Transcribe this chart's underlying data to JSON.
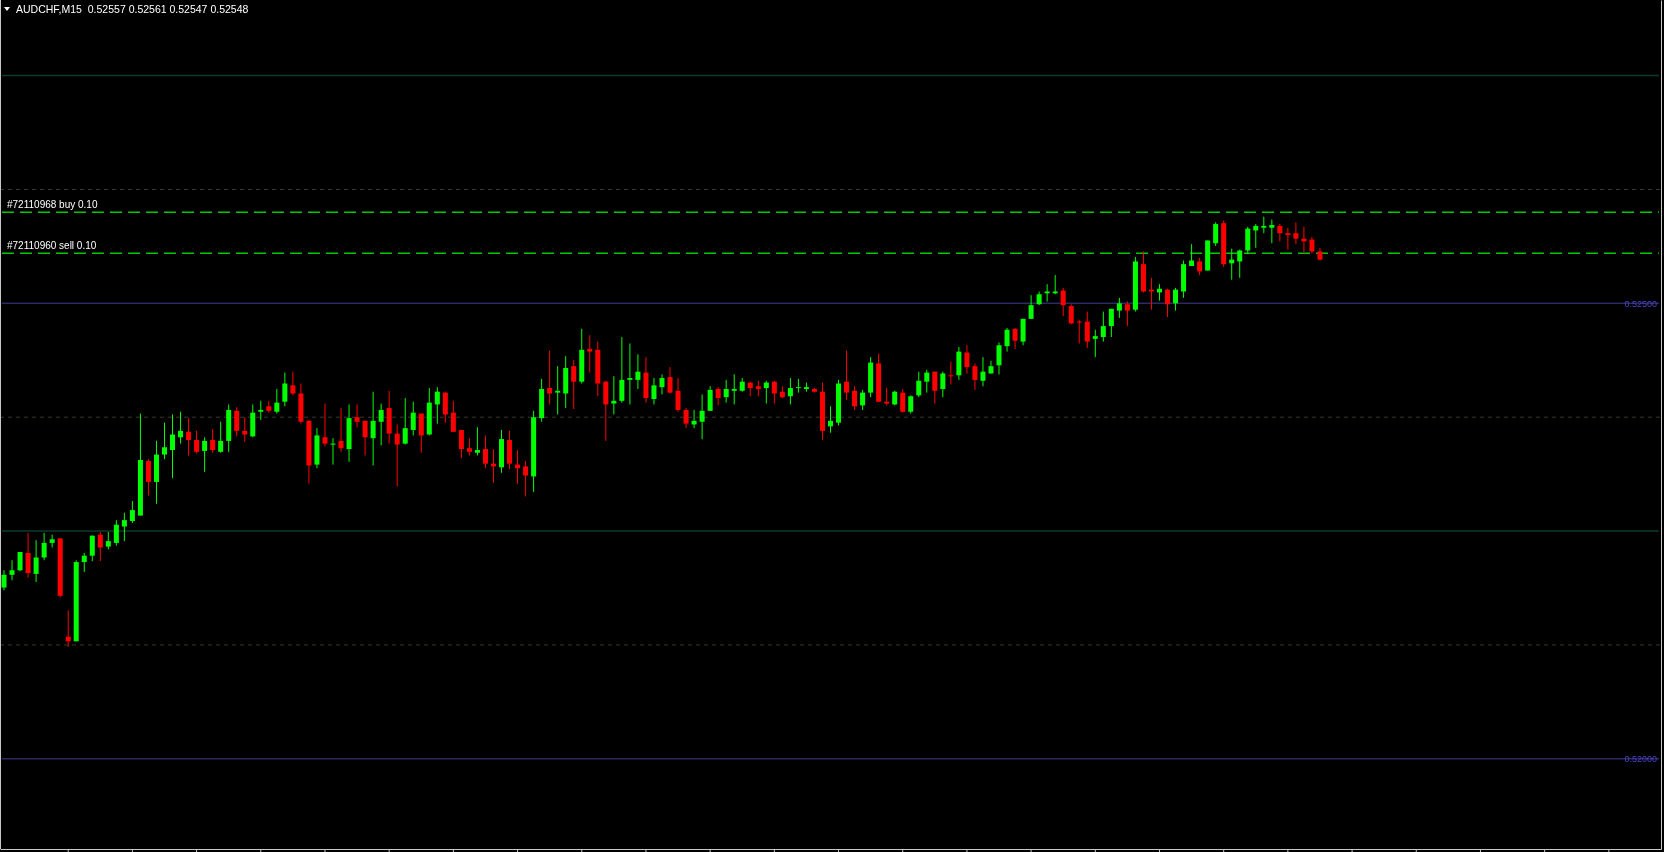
{
  "chart_data": {
    "type": "candlestick",
    "title": "AUDCHF,M15  0.52557 0.52561 0.52547 0.52548",
    "categories": [
      null,
      null,
      null,
      null,
      null,
      null,
      null,
      null,
      null,
      null,
      null,
      null,
      null,
      null,
      null,
      null,
      null,
      null,
      null,
      null,
      null,
      null,
      null,
      null,
      null,
      null,
      null,
      null,
      null,
      null,
      null,
      null,
      null,
      null,
      null,
      null,
      null,
      null,
      null,
      null,
      null,
      null,
      null,
      null,
      null,
      null,
      null,
      null,
      null,
      null,
      null,
      null,
      null,
      null,
      null,
      null,
      null,
      null,
      null,
      null,
      null,
      null,
      null,
      null,
      null,
      null,
      null,
      null,
      null,
      null,
      null,
      null,
      null,
      null,
      null,
      null,
      null,
      null,
      null,
      null,
      null,
      null,
      null,
      null,
      null,
      null,
      null,
      null,
      null,
      null,
      null,
      null,
      null,
      null,
      null,
      null,
      null,
      null,
      null,
      null,
      null,
      null,
      null,
      null,
      null,
      null,
      null,
      null,
      null,
      null,
      null,
      null,
      null,
      null,
      null,
      null,
      null,
      null,
      null,
      null,
      null,
      null,
      null,
      null,
      null,
      null,
      null,
      null,
      null,
      null,
      null,
      null,
      null,
      null,
      null,
      null,
      null,
      null,
      null,
      null,
      null,
      null,
      null,
      null,
      null,
      null,
      null,
      null,
      null,
      null,
      null,
      null,
      null,
      null,
      null,
      null,
      null,
      null,
      null,
      null,
      null,
      null,
      null,
      null,
      null,
      null,
      null,
      null,
      null,
      null,
      null,
      null,
      null,
      null,
      null,
      null,
      null,
      null,
      null,
      null,
      null,
      null,
      null,
      null,
      null,
      null,
      null,
      null,
      null,
      null,
      null,
      null,
      null,
      null,
      null,
      null,
      null,
      null,
      null,
      null,
      null,
      null,
      null,
      null,
      null,
      null,
      null
    ],
    "ohlc": [
      [
        0.52188,
        0.52207,
        0.52185,
        0.52202
      ],
      [
        0.52202,
        0.52218,
        0.52196,
        0.52207
      ],
      [
        0.52207,
        0.52227,
        0.52206,
        0.52227
      ],
      [
        0.52226,
        0.52248,
        0.52199,
        0.52204
      ],
      [
        0.52203,
        0.5224,
        0.52194,
        0.52221
      ],
      [
        0.52221,
        0.52248,
        0.52218,
        0.52237
      ],
      [
        0.52237,
        0.52246,
        0.52232,
        0.52241
      ],
      [
        0.52242,
        0.52242,
        0.52177,
        0.52179
      ],
      [
        0.52134,
        0.52163,
        0.52123,
        0.52129
      ],
      [
        0.52129,
        0.52218,
        0.52129,
        0.52216
      ],
      [
        0.52216,
        0.52226,
        0.52205,
        0.52223
      ],
      [
        0.52223,
        0.52245,
        0.52217,
        0.52245
      ],
      [
        0.52246,
        0.52249,
        0.52217,
        0.52232
      ],
      [
        0.52233,
        0.52249,
        0.5223,
        0.52239
      ],
      [
        0.52237,
        0.52262,
        0.52234,
        0.52257
      ],
      [
        0.52255,
        0.5227,
        0.52239,
        0.52262
      ],
      [
        0.52261,
        0.52283,
        0.52259,
        0.52273
      ],
      [
        0.52267,
        0.52379,
        0.52267,
        0.52328
      ],
      [
        0.52327,
        0.52329,
        0.52289,
        0.52304
      ],
      [
        0.52304,
        0.52349,
        0.5228,
        0.52334
      ],
      [
        0.52334,
        0.52369,
        0.52329,
        0.52342
      ],
      [
        0.52339,
        0.52378,
        0.52308,
        0.52356
      ],
      [
        0.52353,
        0.52381,
        0.52346,
        0.5236
      ],
      [
        0.52359,
        0.52374,
        0.52333,
        0.5235
      ],
      [
        0.5235,
        0.5236,
        0.52335,
        0.52337
      ],
      [
        0.52338,
        0.52353,
        0.52315,
        0.52349
      ],
      [
        0.5235,
        0.52362,
        0.52336,
        0.52339
      ],
      [
        0.52337,
        0.5237,
        0.52336,
        0.52349
      ],
      [
        0.52349,
        0.52389,
        0.52337,
        0.52383
      ],
      [
        0.52382,
        0.52386,
        0.52354,
        0.5236
      ],
      [
        0.5236,
        0.52375,
        0.52348,
        0.52356
      ],
      [
        0.52354,
        0.52389,
        0.52353,
        0.5238
      ],
      [
        0.52381,
        0.52393,
        0.52372,
        0.52383
      ],
      [
        0.52387,
        0.52393,
        0.5238,
        0.52382
      ],
      [
        0.52381,
        0.52406,
        0.52379,
        0.52391
      ],
      [
        0.52392,
        0.52424,
        0.52387,
        0.52412
      ],
      [
        0.5241,
        0.52425,
        0.52399,
        0.52401
      ],
      [
        0.52401,
        0.52412,
        0.52368,
        0.5237
      ],
      [
        0.52371,
        0.52372,
        0.52302,
        0.52322
      ],
      [
        0.52323,
        0.52363,
        0.52319,
        0.52355
      ],
      [
        0.52353,
        0.5239,
        0.52343,
        0.52346
      ],
      [
        0.52345,
        0.52352,
        0.52323,
        0.52346
      ],
      [
        0.52349,
        0.52385,
        0.52337,
        0.52341
      ],
      [
        0.5234,
        0.52389,
        0.52326,
        0.52374
      ],
      [
        0.52375,
        0.52389,
        0.52364,
        0.5237
      ],
      [
        0.52371,
        0.52371,
        0.52333,
        0.52353
      ],
      [
        0.52352,
        0.52403,
        0.52322,
        0.52371
      ],
      [
        0.5237,
        0.5239,
        0.52344,
        0.52383
      ],
      [
        0.52385,
        0.52404,
        0.52346,
        0.52357
      ],
      [
        0.52357,
        0.52367,
        0.52299,
        0.52345
      ],
      [
        0.52346,
        0.52396,
        0.52345,
        0.52363
      ],
      [
        0.52361,
        0.52392,
        0.52355,
        0.5238
      ],
      [
        0.52379,
        0.52379,
        0.52336,
        0.52355
      ],
      [
        0.52356,
        0.52407,
        0.52355,
        0.52391
      ],
      [
        0.52389,
        0.52408,
        0.52368,
        0.52403
      ],
      [
        0.52402,
        0.52403,
        0.52369,
        0.52378
      ],
      [
        0.5238,
        0.52393,
        0.52359,
        0.52359
      ],
      [
        0.52361,
        0.52361,
        0.5233,
        0.5234
      ],
      [
        0.52341,
        0.52352,
        0.52333,
        0.52337
      ],
      [
        0.52336,
        0.52364,
        0.52333,
        0.52339
      ],
      [
        0.5234,
        0.52355,
        0.52319,
        0.52324
      ],
      [
        0.52324,
        0.5234,
        0.52303,
        0.52321
      ],
      [
        0.5232,
        0.52361,
        0.52314,
        0.52351
      ],
      [
        0.5235,
        0.5236,
        0.52318,
        0.52324
      ],
      [
        0.52323,
        0.52339,
        0.52302,
        0.52319
      ],
      [
        0.52321,
        0.52327,
        0.52288,
        0.52311
      ],
      [
        0.5231,
        0.52382,
        0.52293,
        0.52375
      ],
      [
        0.52374,
        0.52417,
        0.5237,
        0.52406
      ],
      [
        0.52407,
        0.52448,
        0.52389,
        0.52401
      ],
      [
        0.52402,
        0.52431,
        0.52378,
        0.52404
      ],
      [
        0.52401,
        0.52442,
        0.52385,
        0.52429
      ],
      [
        0.52431,
        0.52438,
        0.52384,
        0.52414
      ],
      [
        0.52414,
        0.52472,
        0.52412,
        0.52449
      ],
      [
        0.5245,
        0.52465,
        0.52424,
        0.52447
      ],
      [
        0.52449,
        0.52458,
        0.52398,
        0.52412
      ],
      [
        0.52414,
        0.52415,
        0.52349,
        0.52389
      ],
      [
        0.5239,
        0.5242,
        0.52378,
        0.52393
      ],
      [
        0.52393,
        0.52463,
        0.52391,
        0.52416
      ],
      [
        0.52416,
        0.52456,
        0.52389,
        0.52418
      ],
      [
        0.52416,
        0.52444,
        0.52406,
        0.52425
      ],
      [
        0.52424,
        0.52441,
        0.52391,
        0.52396
      ],
      [
        0.52395,
        0.52418,
        0.52389,
        0.5241
      ],
      [
        0.52408,
        0.52422,
        0.524,
        0.52418
      ],
      [
        0.52419,
        0.5243,
        0.52401,
        0.52402
      ],
      [
        0.52404,
        0.52418,
        0.52381,
        0.52383
      ],
      [
        0.52383,
        0.52385,
        0.52363,
        0.52368
      ],
      [
        0.52367,
        0.52383,
        0.52363,
        0.52371
      ],
      [
        0.5237,
        0.524,
        0.52351,
        0.52382
      ],
      [
        0.52382,
        0.52409,
        0.52382,
        0.52405
      ],
      [
        0.52406,
        0.52408,
        0.52388,
        0.52396
      ],
      [
        0.52397,
        0.52416,
        0.52391,
        0.52406
      ],
      [
        0.52404,
        0.52422,
        0.52389,
        0.52406
      ],
      [
        0.52404,
        0.52418,
        0.52403,
        0.52414
      ],
      [
        0.52413,
        0.52414,
        0.52398,
        0.52407
      ],
      [
        0.52409,
        0.52415,
        0.52398,
        0.52406
      ],
      [
        0.52407,
        0.52415,
        0.5239,
        0.52413
      ],
      [
        0.52414,
        0.52415,
        0.5239,
        0.52401
      ],
      [
        0.52403,
        0.52409,
        0.52396,
        0.52397
      ],
      [
        0.52398,
        0.52418,
        0.52389,
        0.52407
      ],
      [
        0.52407,
        0.52417,
        0.52402,
        0.52408
      ],
      [
        0.52406,
        0.52413,
        0.52403,
        0.52408
      ],
      [
        0.52406,
        0.52407,
        0.52402,
        0.52403
      ],
      [
        0.52403,
        0.52413,
        0.5235,
        0.5236
      ],
      [
        0.52365,
        0.52387,
        0.52358,
        0.52371
      ],
      [
        0.52369,
        0.52416,
        0.52366,
        0.52412
      ],
      [
        0.52414,
        0.52448,
        0.52394,
        0.52402
      ],
      [
        0.52404,
        0.52409,
        0.52383,
        0.52387
      ],
      [
        0.52388,
        0.52405,
        0.52383,
        0.52402
      ],
      [
        0.52402,
        0.52441,
        0.52397,
        0.52435
      ],
      [
        0.52434,
        0.52445,
        0.52392,
        0.52392
      ],
      [
        0.52392,
        0.52407,
        0.52388,
        0.5239
      ],
      [
        0.52389,
        0.52404,
        0.52388,
        0.52403
      ],
      [
        0.52402,
        0.52406,
        0.5238,
        0.52381
      ],
      [
        0.52381,
        0.52399,
        0.52379,
        0.52398
      ],
      [
        0.52399,
        0.52425,
        0.52397,
        0.52415
      ],
      [
        0.52414,
        0.52427,
        0.52402,
        0.52424
      ],
      [
        0.52425,
        0.52425,
        0.5239,
        0.52404
      ],
      [
        0.52406,
        0.52425,
        0.52397,
        0.52423
      ],
      [
        0.52421,
        0.52436,
        0.52411,
        0.5242
      ],
      [
        0.52421,
        0.52452,
        0.52416,
        0.52447
      ],
      [
        0.52446,
        0.52454,
        0.52423,
        0.5243
      ],
      [
        0.52431,
        0.52434,
        0.52405,
        0.52416
      ],
      [
        0.52415,
        0.52441,
        0.52409,
        0.52425
      ],
      [
        0.52423,
        0.52437,
        0.52423,
        0.52431
      ],
      [
        0.52432,
        0.52457,
        0.52422,
        0.52454
      ],
      [
        0.52453,
        0.52473,
        0.52447,
        0.52471
      ],
      [
        0.52472,
        0.52473,
        0.5245,
        0.52459
      ],
      [
        0.52458,
        0.52483,
        0.52454,
        0.52483
      ],
      [
        0.52483,
        0.52509,
        0.52483,
        0.52498
      ],
      [
        0.52499,
        0.52513,
        0.52498,
        0.5251
      ],
      [
        0.52511,
        0.52521,
        0.52502,
        0.52513
      ],
      [
        0.52511,
        0.52531,
        0.5251,
        0.52513
      ],
      [
        0.52514,
        0.52517,
        0.52486,
        0.52498
      ],
      [
        0.52497,
        0.52499,
        0.52477,
        0.52478
      ],
      [
        0.5248,
        0.52482,
        0.52456,
        0.52479
      ],
      [
        0.5248,
        0.52491,
        0.52451,
        0.52458
      ],
      [
        0.52461,
        0.52471,
        0.52441,
        0.52464
      ],
      [
        0.52463,
        0.52491,
        0.52458,
        0.52475
      ],
      [
        0.52475,
        0.52494,
        0.52463,
        0.52494
      ],
      [
        0.52492,
        0.52506,
        0.52484,
        0.525
      ],
      [
        0.52499,
        0.52502,
        0.52475,
        0.52492
      ],
      [
        0.52493,
        0.52551,
        0.52491,
        0.52546
      ],
      [
        0.52543,
        0.52557,
        0.52512,
        0.52513
      ],
      [
        0.52515,
        0.52528,
        0.52493,
        0.52513
      ],
      [
        0.52512,
        0.52521,
        0.52503,
        0.52516
      ],
      [
        0.52515,
        0.52516,
        0.52485,
        0.52499
      ],
      [
        0.525,
        0.52517,
        0.52492,
        0.52515
      ],
      [
        0.52513,
        0.52547,
        0.52506,
        0.52543
      ],
      [
        0.52541,
        0.52565,
        0.52541,
        0.52547
      ],
      [
        0.52546,
        0.5255,
        0.52531,
        0.52535
      ],
      [
        0.52536,
        0.52569,
        0.52536,
        0.52569
      ],
      [
        0.52566,
        0.52589,
        0.52563,
        0.52587
      ],
      [
        0.52588,
        0.52591,
        0.5254,
        0.52543
      ],
      [
        0.52544,
        0.5256,
        0.52526,
        0.52548
      ],
      [
        0.52546,
        0.52559,
        0.52528,
        0.52558
      ],
      [
        0.52558,
        0.52584,
        0.52554,
        0.52582
      ],
      [
        0.5258,
        0.52587,
        0.52561,
        0.52585
      ],
      [
        0.52583,
        0.52595,
        0.52577,
        0.52585
      ],
      [
        0.52583,
        0.52592,
        0.52566,
        0.52586
      ],
      [
        0.52585,
        0.52587,
        0.52568,
        0.52577
      ],
      [
        0.52577,
        0.52583,
        0.52559,
        0.52575
      ],
      [
        0.52577,
        0.52589,
        0.52565,
        0.52571
      ],
      [
        0.52571,
        0.52584,
        0.52555,
        0.52568
      ],
      [
        0.5257,
        0.52573,
        0.52555,
        0.52557
      ],
      [
        0.52557,
        0.52561,
        0.52547,
        0.52548
      ],
      null,
      null,
      null,
      null,
      null,
      null,
      null,
      null,
      null,
      null,
      null,
      null,
      null,
      null,
      null,
      null,
      null,
      null,
      null,
      null,
      null,
      null,
      null,
      null,
      null,
      null,
      null,
      null,
      null,
      null,
      null,
      null,
      null,
      null,
      null,
      null,
      null,
      null,
      null,
      null,
      null,
      null
    ],
    "colors": [
      "#00ff00",
      "#00ff00",
      "#00ff00",
      "#ff0000",
      "#00ff00",
      "#00ff00",
      "#00ff00",
      "#ff0000",
      "#ff0000",
      "#00ff00",
      "#00ff00",
      "#00ff00",
      "#ff0000",
      "#00ff00",
      "#00ff00",
      "#00ff00",
      "#00ff00",
      "#00ff00",
      "#ff0000",
      "#00ff00",
      "#00ff00",
      "#00ff00",
      "#00ff00",
      "#ff0000",
      "#ff0000",
      "#00ff00",
      "#ff0000",
      "#00ff00",
      "#00ff00",
      "#ff0000",
      "#ff0000",
      "#00ff00",
      "#00ff00",
      "#ff0000",
      "#00ff00",
      "#00ff00",
      "#ff0000",
      "#ff0000",
      "#ff0000",
      "#00ff00",
      "#ff0000",
      "#00ff00",
      "#ff0000",
      "#00ff00",
      "#ff0000",
      "#ff0000",
      "#00ff00",
      "#00ff00",
      "#ff0000",
      "#ff0000",
      "#00ff00",
      "#00ff00",
      "#ff0000",
      "#00ff00",
      "#00ff00",
      "#ff0000",
      "#ff0000",
      "#ff0000",
      "#ff0000",
      "#00ff00",
      "#ff0000",
      "#ff0000",
      "#00ff00",
      "#ff0000",
      "#ff0000",
      "#ff0000",
      "#00ff00",
      "#00ff00",
      "#ff0000",
      "#00ff00",
      "#00ff00",
      "#ff0000",
      "#00ff00",
      "#ff0000",
      "#ff0000",
      "#ff0000",
      "#00ff00",
      "#00ff00",
      "#00ff00",
      "#00ff00",
      "#ff0000",
      "#00ff00",
      "#00ff00",
      "#ff0000",
      "#ff0000",
      "#ff0000",
      "#00ff00",
      "#00ff00",
      "#00ff00",
      "#ff0000",
      "#00ff00",
      "#00ff00",
      "#00ff00",
      "#ff0000",
      "#ff0000",
      "#00ff00",
      "#ff0000",
      "#ff0000",
      "#00ff00",
      "#00ff00",
      "#00ff00",
      "#ff0000",
      "#ff0000",
      "#00ff00",
      "#00ff00",
      "#ff0000",
      "#ff0000",
      "#00ff00",
      "#00ff00",
      "#ff0000",
      "#ff0000",
      "#00ff00",
      "#ff0000",
      "#00ff00",
      "#00ff00",
      "#00ff00",
      "#ff0000",
      "#00ff00",
      "#ff0000",
      "#00ff00",
      "#ff0000",
      "#ff0000",
      "#00ff00",
      "#00ff00",
      "#00ff00",
      "#00ff00",
      "#ff0000",
      "#00ff00",
      "#00ff00",
      "#00ff00",
      "#00ff00",
      "#00ff00",
      "#ff0000",
      "#ff0000",
      "#ff0000",
      "#ff0000",
      "#00ff00",
      "#00ff00",
      "#00ff00",
      "#00ff00",
      "#ff0000",
      "#00ff00",
      "#ff0000",
      "#ff0000",
      "#00ff00",
      "#ff0000",
      "#00ff00",
      "#00ff00",
      "#00ff00",
      "#ff0000",
      "#00ff00",
      "#00ff00",
      "#ff0000",
      "#00ff00",
      "#00ff00",
      "#00ff00",
      "#00ff00",
      "#00ff00",
      "#00ff00",
      "#ff0000",
      "#ff0000",
      "#ff0000",
      "#ff0000",
      "#ff0000",
      "#ff0000",
      null,
      null,
      null,
      null,
      null,
      null,
      null,
      null,
      null,
      null,
      null,
      null,
      null,
      null,
      null,
      null,
      null,
      null,
      null,
      null,
      null,
      null,
      null,
      null,
      null,
      null,
      null,
      null,
      null,
      null,
      null,
      null,
      null,
      null,
      null,
      null,
      null,
      null,
      null,
      null,
      null,
      null
    ],
    "ylim": [
      0.51901,
      0.52833
    ],
    "yticks": [
      {
        "value": 0.52,
        "label": "0.52000"
      },
      {
        "value": 0.52125,
        "label": null
      },
      {
        "value": 0.52375,
        "label": null
      },
      {
        "value": 0.525,
        "label": "0.52500"
      },
      {
        "value": 0.52625,
        "label": null
      }
    ],
    "grid": "y",
    "tick_labels": "y",
    "ref_lines": [
      {
        "axis": "y",
        "value": 0.5275,
        "label": null,
        "color": "#0c3b2c",
        "line_style": "solid"
      },
      {
        "axis": "y",
        "value": 0.5225,
        "label": null,
        "color": "#0c3b2c",
        "line_style": "solid"
      },
      {
        "axis": "y",
        "value": 0.525,
        "label": null,
        "color": "#2c2a62",
        "line_style": "solid"
      },
      {
        "axis": "y",
        "value": 0.52,
        "label": null,
        "color": "#2c2a62",
        "line_style": "solid"
      },
      {
        "axis": "y",
        "value": 0.526,
        "label": "#72110968 buy 0.10",
        "color": "#00c800",
        "line_style": "dashed"
      },
      {
        "axis": "y",
        "value": 0.52555,
        "label": "#72110960 sell 0.10",
        "color": "#00c800",
        "line_style": "dashed"
      }
    ]
  }
}
